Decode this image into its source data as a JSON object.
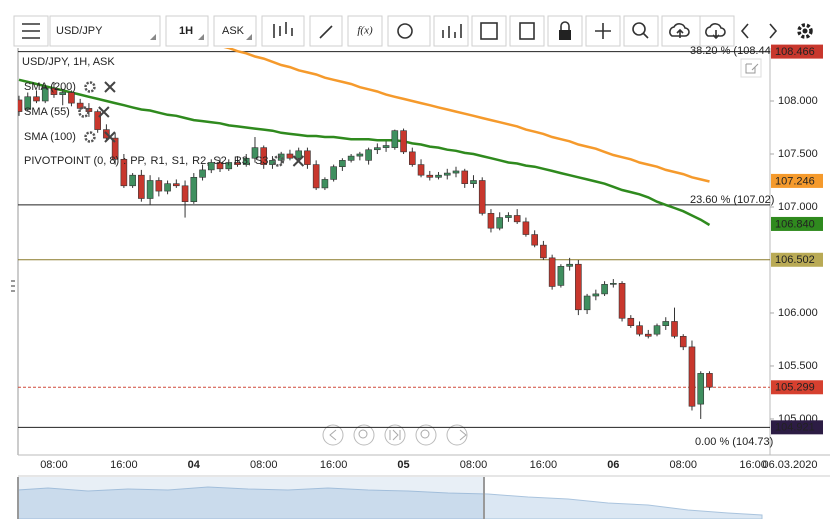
{
  "toolbar": {
    "symbol": "USD/JPY",
    "interval": "1H",
    "side": "ASK",
    "fx": "f(x)"
  },
  "chart_data": {
    "type": "candlestick",
    "title": "USD/JPY, 1H, ASK",
    "date_label": "06.03.2020",
    "categories": [
      null,
      null,
      null,
      null,
      "08:00",
      null,
      null,
      null,
      null,
      null,
      null,
      null,
      "16:00",
      null,
      null,
      null,
      null,
      null,
      null,
      null,
      "04",
      null,
      null,
      null,
      null,
      null,
      null,
      null,
      "08:00",
      null,
      null,
      null,
      null,
      null,
      null,
      null,
      "16:00",
      null,
      null,
      null,
      null,
      null,
      null,
      null,
      "05",
      null,
      null,
      null,
      null,
      null,
      null,
      null,
      "08:00",
      null,
      null,
      null,
      null,
      null,
      null,
      null,
      "16:00",
      null,
      null,
      null,
      null,
      null,
      null,
      null,
      "06",
      null,
      null,
      null,
      null,
      null,
      null,
      null,
      "08:00",
      null,
      null,
      null,
      null,
      null,
      null,
      null,
      "16:00"
    ],
    "open": [
      108.01,
      107.92,
      108.04,
      108.0,
      108.12,
      108.06,
      108.08,
      107.98,
      107.93,
      107.9,
      107.73,
      107.65,
      107.45,
      107.2,
      107.3,
      107.08,
      107.25,
      107.15,
      107.22,
      107.2,
      107.05,
      107.28,
      107.35,
      107.42,
      107.36,
      107.42,
      107.4,
      107.46,
      107.56,
      107.4,
      107.44,
      107.5,
      107.46,
      107.53,
      107.4,
      107.18,
      107.26,
      107.38,
      107.44,
      107.48,
      107.44,
      107.54,
      107.56,
      107.56,
      107.72,
      107.52,
      107.4,
      107.3,
      107.28,
      107.3,
      107.32,
      107.34,
      107.22,
      107.25,
      106.94,
      106.8,
      106.9,
      106.92,
      106.86,
      106.74,
      106.64,
      106.52,
      106.26,
      106.44,
      106.46,
      106.03,
      106.16,
      106.18,
      106.27,
      106.28,
      105.95,
      105.88,
      105.8,
      105.8,
      105.88,
      105.92,
      105.78,
      105.68,
      105.14,
      105.43,
      null,
      null,
      null,
      null,
      null
    ],
    "high": [
      108.05,
      108.08,
      108.1,
      108.15,
      108.18,
      108.1,
      108.1,
      108.02,
      107.98,
      107.92,
      107.78,
      107.7,
      107.5,
      107.32,
      107.35,
      107.3,
      107.28,
      107.25,
      107.26,
      107.25,
      107.32,
      107.4,
      107.45,
      107.46,
      107.45,
      107.48,
      107.5,
      107.66,
      107.58,
      107.48,
      107.52,
      107.54,
      107.56,
      107.56,
      107.44,
      107.28,
      107.4,
      107.46,
      107.5,
      107.52,
      107.56,
      107.6,
      107.62,
      107.73,
      107.74,
      107.56,
      107.45,
      107.34,
      107.33,
      107.36,
      107.38,
      107.36,
      107.3,
      107.28,
      106.98,
      106.95,
      106.95,
      106.98,
      106.9,
      106.78,
      106.68,
      106.55,
      106.46,
      106.52,
      106.5,
      106.18,
      106.22,
      106.3,
      106.32,
      106.3,
      105.98,
      105.92,
      105.84,
      105.9,
      105.96,
      106.05,
      105.8,
      105.74,
      105.45,
      105.45,
      null,
      null,
      null,
      null,
      null
    ],
    "low": [
      107.86,
      107.9,
      107.98,
      107.98,
      108.03,
      107.96,
      107.95,
      107.9,
      107.85,
      107.7,
      107.62,
      107.4,
      107.18,
      107.18,
      107.05,
      107.02,
      107.1,
      107.12,
      107.18,
      106.9,
      107.03,
      107.25,
      107.32,
      107.33,
      107.34,
      107.38,
      107.38,
      107.42,
      107.36,
      107.36,
      107.4,
      107.44,
      107.44,
      107.36,
      107.16,
      107.16,
      107.24,
      107.34,
      107.42,
      107.44,
      107.4,
      107.5,
      107.52,
      107.54,
      107.5,
      107.38,
      107.28,
      107.25,
      107.26,
      107.26,
      107.28,
      107.18,
      107.18,
      106.92,
      106.76,
      106.78,
      106.86,
      106.84,
      106.72,
      106.62,
      106.5,
      106.22,
      106.24,
      106.4,
      105.98,
      105.99,
      106.12,
      106.16,
      106.24,
      105.92,
      105.86,
      105.78,
      105.76,
      105.78,
      105.84,
      105.76,
      105.65,
      105.08,
      105.0,
      105.27,
      null,
      null,
      null,
      null,
      null
    ],
    "close": [
      107.9,
      108.04,
      108.0,
      108.12,
      108.06,
      108.08,
      107.98,
      107.93,
      107.9,
      107.73,
      107.65,
      107.45,
      107.2,
      107.3,
      107.08,
      107.25,
      107.15,
      107.22,
      107.2,
      107.05,
      107.28,
      107.35,
      107.42,
      107.36,
      107.42,
      107.4,
      107.46,
      107.56,
      107.4,
      107.44,
      107.5,
      107.46,
      107.53,
      107.4,
      107.18,
      107.26,
      107.38,
      107.44,
      107.48,
      107.5,
      107.54,
      107.56,
      107.58,
      107.72,
      107.52,
      107.4,
      107.3,
      107.28,
      107.3,
      107.32,
      107.34,
      107.22,
      107.25,
      106.94,
      106.8,
      106.9,
      106.92,
      106.86,
      106.74,
      106.64,
      106.52,
      106.25,
      106.44,
      106.46,
      106.03,
      106.16,
      106.18,
      106.27,
      106.28,
      105.95,
      105.88,
      105.8,
      105.78,
      105.88,
      105.92,
      105.78,
      105.68,
      105.12,
      105.43,
      105.3,
      null,
      null,
      null,
      null,
      null
    ],
    "up_color": "#3f8f5f",
    "down_color": "#c8372d",
    "indicators": [
      {
        "name": "SMA (200)",
        "color": "#b3322c"
      },
      {
        "name": "SMA (55)",
        "color": "#2f8a1e",
        "values": [
          108.2,
          108.18,
          108.16,
          108.14,
          108.12,
          108.1,
          108.08,
          108.06,
          108.04,
          108.02,
          108.0,
          107.98,
          107.96,
          107.94,
          107.92,
          107.91,
          107.89,
          107.87,
          107.86,
          107.84,
          107.82,
          107.81,
          107.8,
          107.79,
          107.77,
          107.76,
          107.75,
          107.74,
          107.73,
          107.72,
          107.7,
          107.69,
          107.68,
          107.67,
          107.67,
          107.66,
          107.66,
          107.65,
          107.64,
          107.64,
          107.64,
          107.63,
          107.63,
          107.63,
          107.62,
          107.6,
          107.59,
          107.57,
          107.56,
          107.54,
          107.53,
          107.51,
          107.5,
          107.48,
          107.46,
          107.44,
          107.42,
          107.41,
          107.39,
          107.38,
          107.36,
          107.34,
          107.32,
          107.3,
          107.28,
          107.26,
          107.24,
          107.22,
          107.19,
          107.16,
          107.14,
          107.12,
          107.09,
          107.05,
          107.02,
          106.99,
          106.96,
          106.92,
          106.88,
          106.83,
          null,
          null,
          null,
          null,
          null
        ]
      },
      {
        "name": "SMA (100)",
        "color": "#f59a2c",
        "values": [
          null,
          null,
          null,
          null,
          null,
          null,
          null,
          null,
          null,
          null,
          null,
          null,
          null,
          null,
          null,
          null,
          null,
          null,
          null,
          null,
          null,
          null,
          108.55,
          108.52,
          108.5,
          108.47,
          108.45,
          108.42,
          108.4,
          108.37,
          108.34,
          108.32,
          108.29,
          108.27,
          108.25,
          108.22,
          108.2,
          108.18,
          108.16,
          108.13,
          108.11,
          108.09,
          108.06,
          108.04,
          108.02,
          108.0,
          107.98,
          107.96,
          107.94,
          107.92,
          107.9,
          107.88,
          107.86,
          107.84,
          107.82,
          107.8,
          107.78,
          107.76,
          107.73,
          107.71,
          107.69,
          107.66,
          107.64,
          107.62,
          107.59,
          107.57,
          107.55,
          107.52,
          107.49,
          107.47,
          107.45,
          107.42,
          107.4,
          107.38,
          107.35,
          107.33,
          107.31,
          107.28,
          107.26,
          107.24,
          null,
          null,
          null,
          null,
          null
        ]
      }
    ],
    "pivot": {
      "name": "PIVOTPOINT (0, 8)",
      "separator": ":",
      "parts": [
        {
          "name": "PP,",
          "color": "#c03aa8"
        },
        {
          "name": "R1,",
          "color": "#2f8a1e"
        },
        {
          "name": "S1,",
          "color": "#d0901a"
        },
        {
          "name": "R2,",
          "color": "#3a55b0"
        },
        {
          "name": "S2,",
          "color": "#6a3a90"
        },
        {
          "name": "R3,",
          "color": "#8a5a1a"
        },
        {
          "name": "S3",
          "color": "#a050c0"
        }
      ]
    },
    "levels": [
      {
        "value": 108.466,
        "color": "#222"
      },
      {
        "value": 107.02,
        "color": "#222"
      },
      {
        "value": 106.502,
        "color": "#8a7a2a"
      },
      {
        "value": 105.299,
        "color": "#d04a3a",
        "dashed": true
      },
      {
        "value": 104.921,
        "color": "#222"
      }
    ],
    "price_markers": [
      {
        "value": 108.466,
        "color": "#c8372d",
        "text_color": "#fff"
      },
      {
        "value": 107.246,
        "color": "#f59a2c",
        "text_color": "#222"
      },
      {
        "value": 106.84,
        "label": "106.840",
        "color": "#2f8a1e",
        "text_color": "#fff"
      },
      {
        "value": 106.502,
        "color": "#b9aa55",
        "text_color": "#222"
      },
      {
        "value": 105.299,
        "color": "#d6402f",
        "text_color": "#fff"
      },
      {
        "value": 104.921,
        "color": "#2c1c44",
        "text_color": "#fff"
      }
    ],
    "annotations": [
      "38.20 % (108.44)",
      "23.60 % (107.02)",
      "0.00 % (104.73)"
    ],
    "ylim": [
      104.66,
      108.5
    ],
    "yticks": [
      {
        "value": 108,
        "label": "108.000"
      },
      {
        "value": 107.5,
        "label": "107.500"
      },
      {
        "value": 107,
        "label": "107.000"
      },
      {
        "value": 106,
        "label": "106.000"
      },
      {
        "value": 105.5,
        "label": "105.500"
      },
      {
        "value": 105,
        "label": "105.000"
      }
    ]
  }
}
